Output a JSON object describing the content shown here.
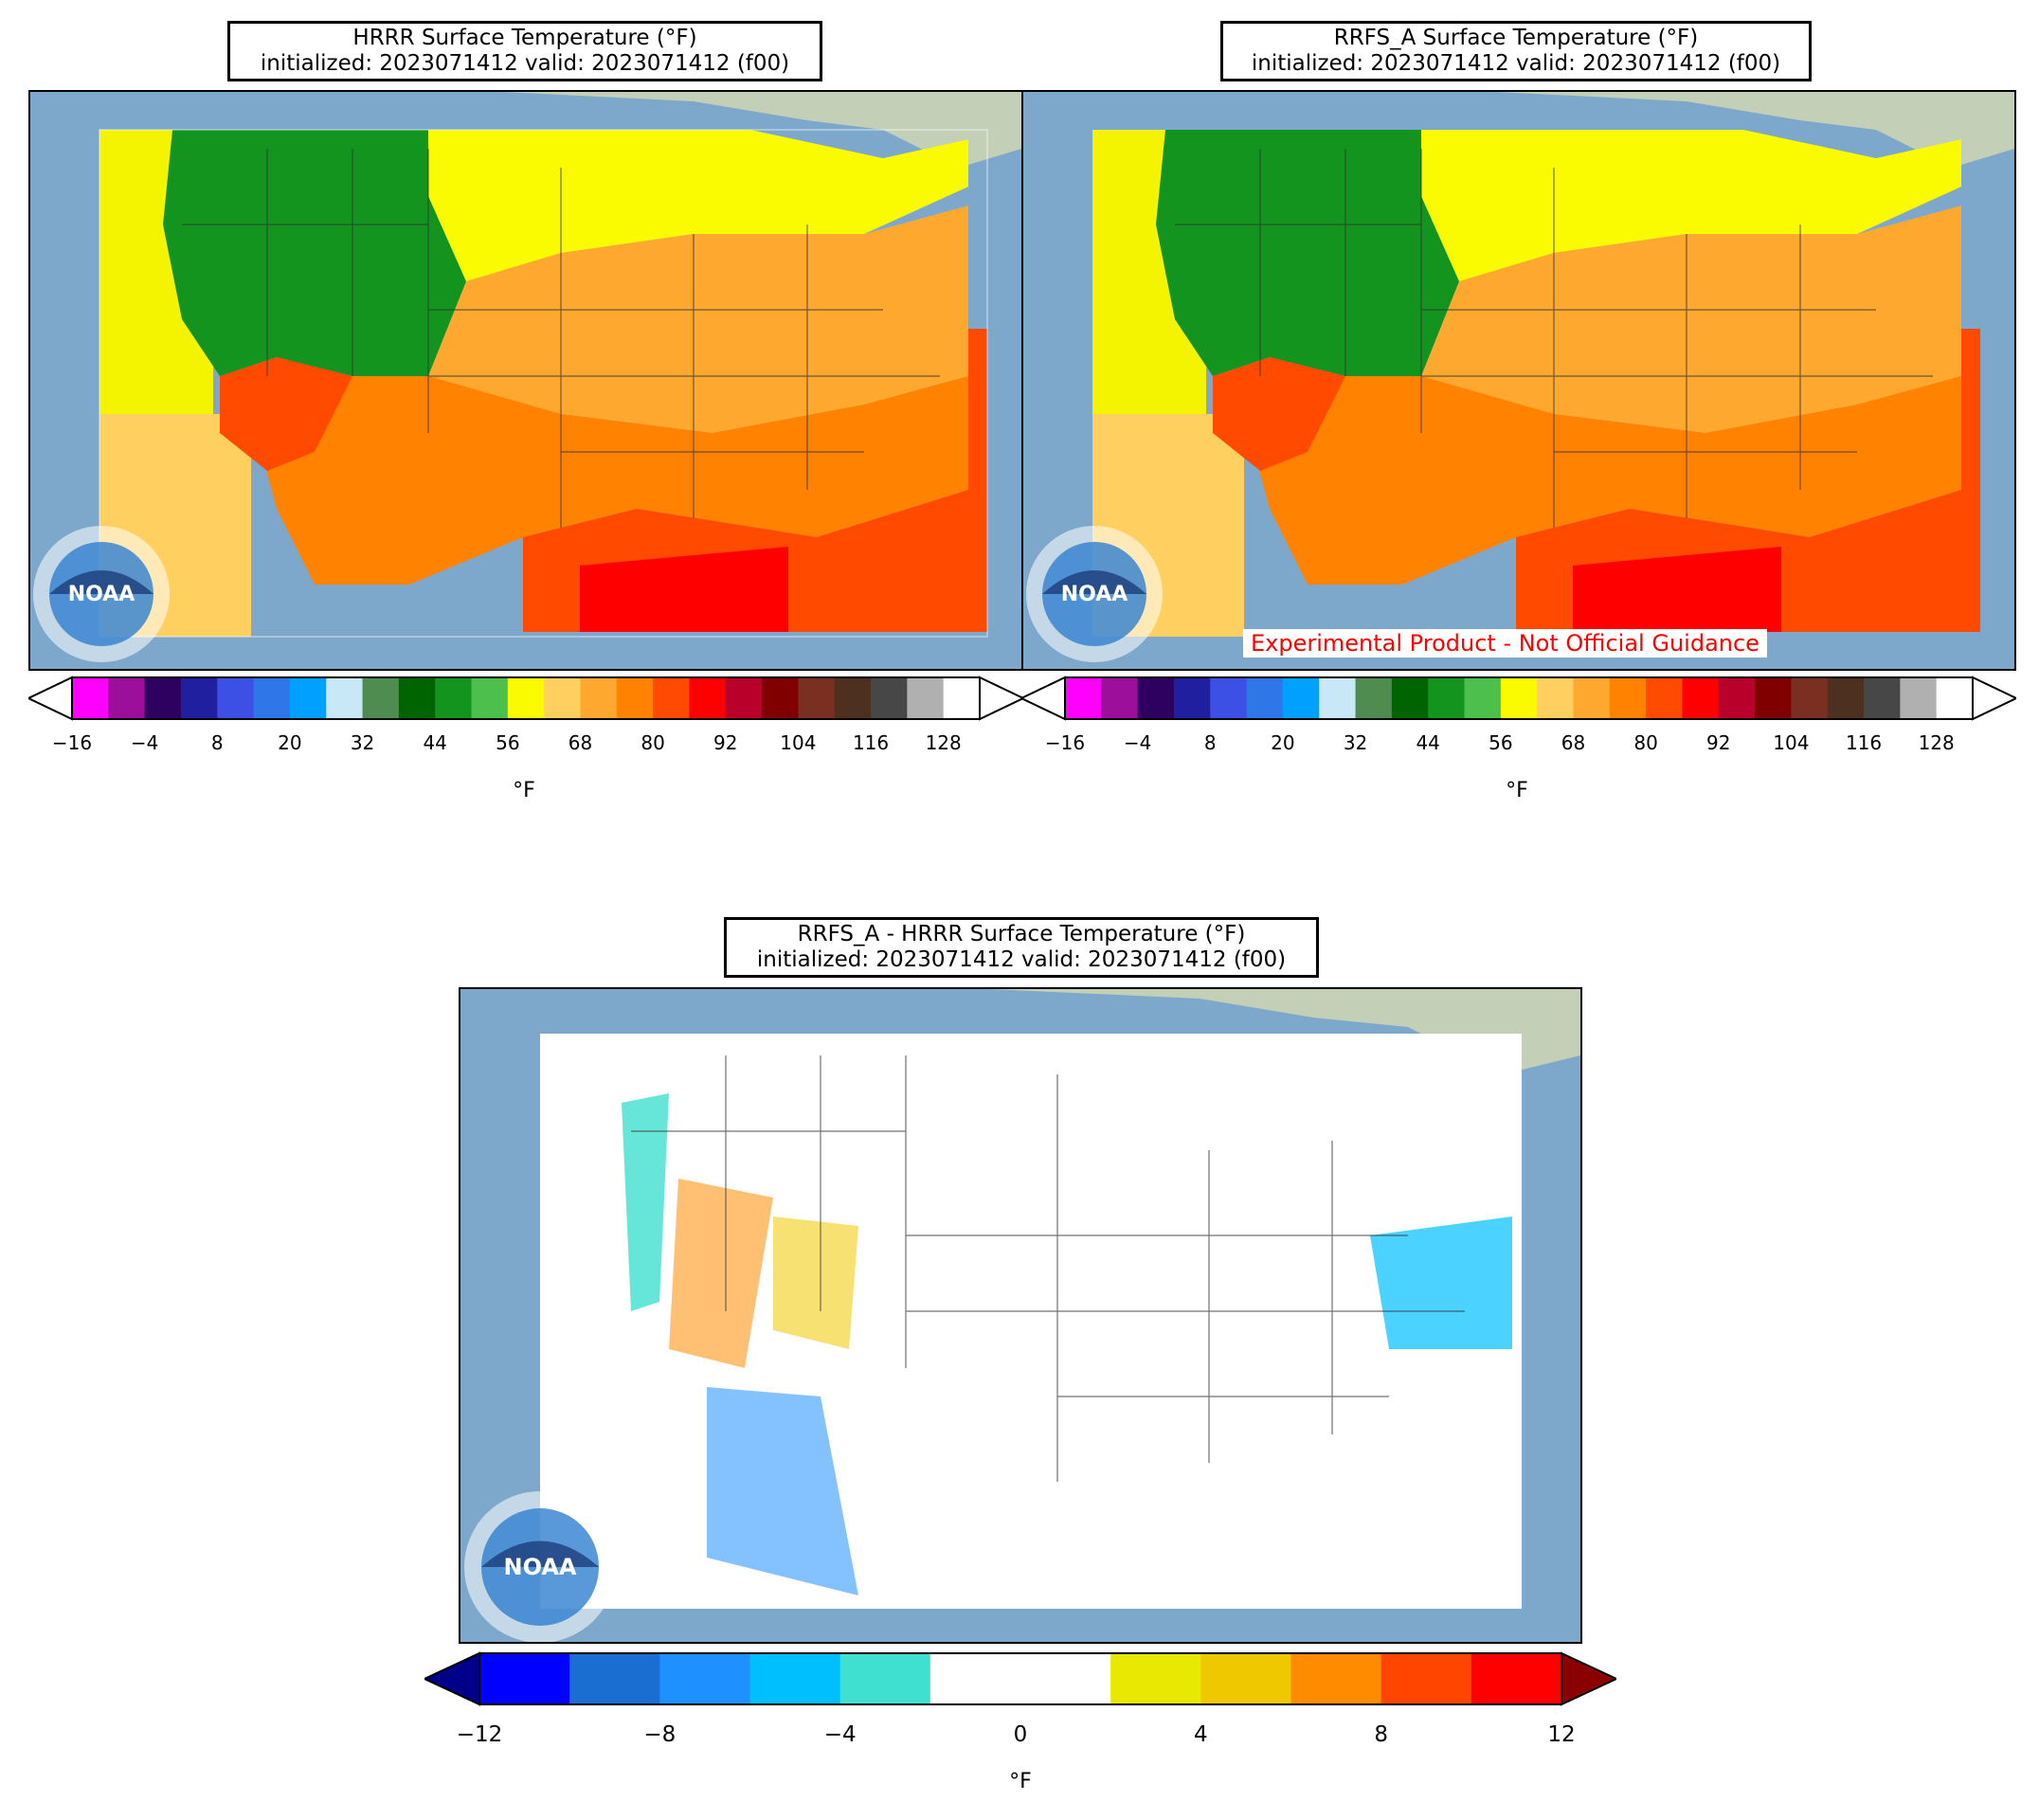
{
  "panels": {
    "hrrr": {
      "title_line1": "HRRR Surface Temperature (°F)",
      "title_line2": "initialized: 2023071412 valid: 2023071412 (f00)"
    },
    "rrfs": {
      "title_line1": "RRFS_A Surface Temperature (°F)",
      "title_line2": "initialized: 2023071412 valid: 2023071412 (f00)",
      "banner": "Experimental Product - Not Official Guidance"
    },
    "diff": {
      "title_line1": "RRFS_A - HRRR Surface Temperature (°F)",
      "title_line2": "initialized: 2023071412 valid: 2023071412 (f00)"
    }
  },
  "logo": {
    "text": "NOAA"
  },
  "temp_colorbar": {
    "unit": "°F",
    "ticks": [
      "−16",
      "−4",
      "8",
      "20",
      "32",
      "44",
      "56",
      "68",
      "80",
      "92",
      "104",
      "116",
      "128"
    ],
    "colors": [
      "#ff00ff",
      "#9b0f9b",
      "#2e0060",
      "#1f1fa0",
      "#3c50e6",
      "#2f76e8",
      "#00a0ff",
      "#c8e8f8",
      "#4e8c50",
      "#006400",
      "#12941e",
      "#4cbf4c",
      "#fafa00",
      "#ffd060",
      "#ffa830",
      "#ff8200",
      "#ff4a00",
      "#ff0000",
      "#b8002a",
      "#800000",
      "#7a3020",
      "#4e3020",
      "#474747",
      "#b0b0b0"
    ],
    "extend_over_color": "#ffffff",
    "extend_under_color": "#ffffff"
  },
  "diff_colorbar": {
    "unit": "°F",
    "ticks": [
      "−12",
      "−8",
      "−4",
      "0",
      "4",
      "8",
      "12"
    ],
    "colors": [
      "#0000ff",
      "#1a6ed2",
      "#1e90ff",
      "#00bfff",
      "#40e0d0",
      "#ffffff",
      "#ffffff",
      "#e8e800",
      "#f0c800",
      "#ff8c00",
      "#ff4500",
      "#ff0000"
    ],
    "extend_under_color": "#00008b",
    "extend_over_color": "#8b0000"
  },
  "map_colors": {
    "ocean": "#7ea8cb",
    "land_bg": "#c4cfb7",
    "pacific_field": "#f4f400",
    "sw_pacific_field": "#ffd060",
    "gulf_atlantic_field": "#ff4a00",
    "diff_field": "#ffffff"
  }
}
